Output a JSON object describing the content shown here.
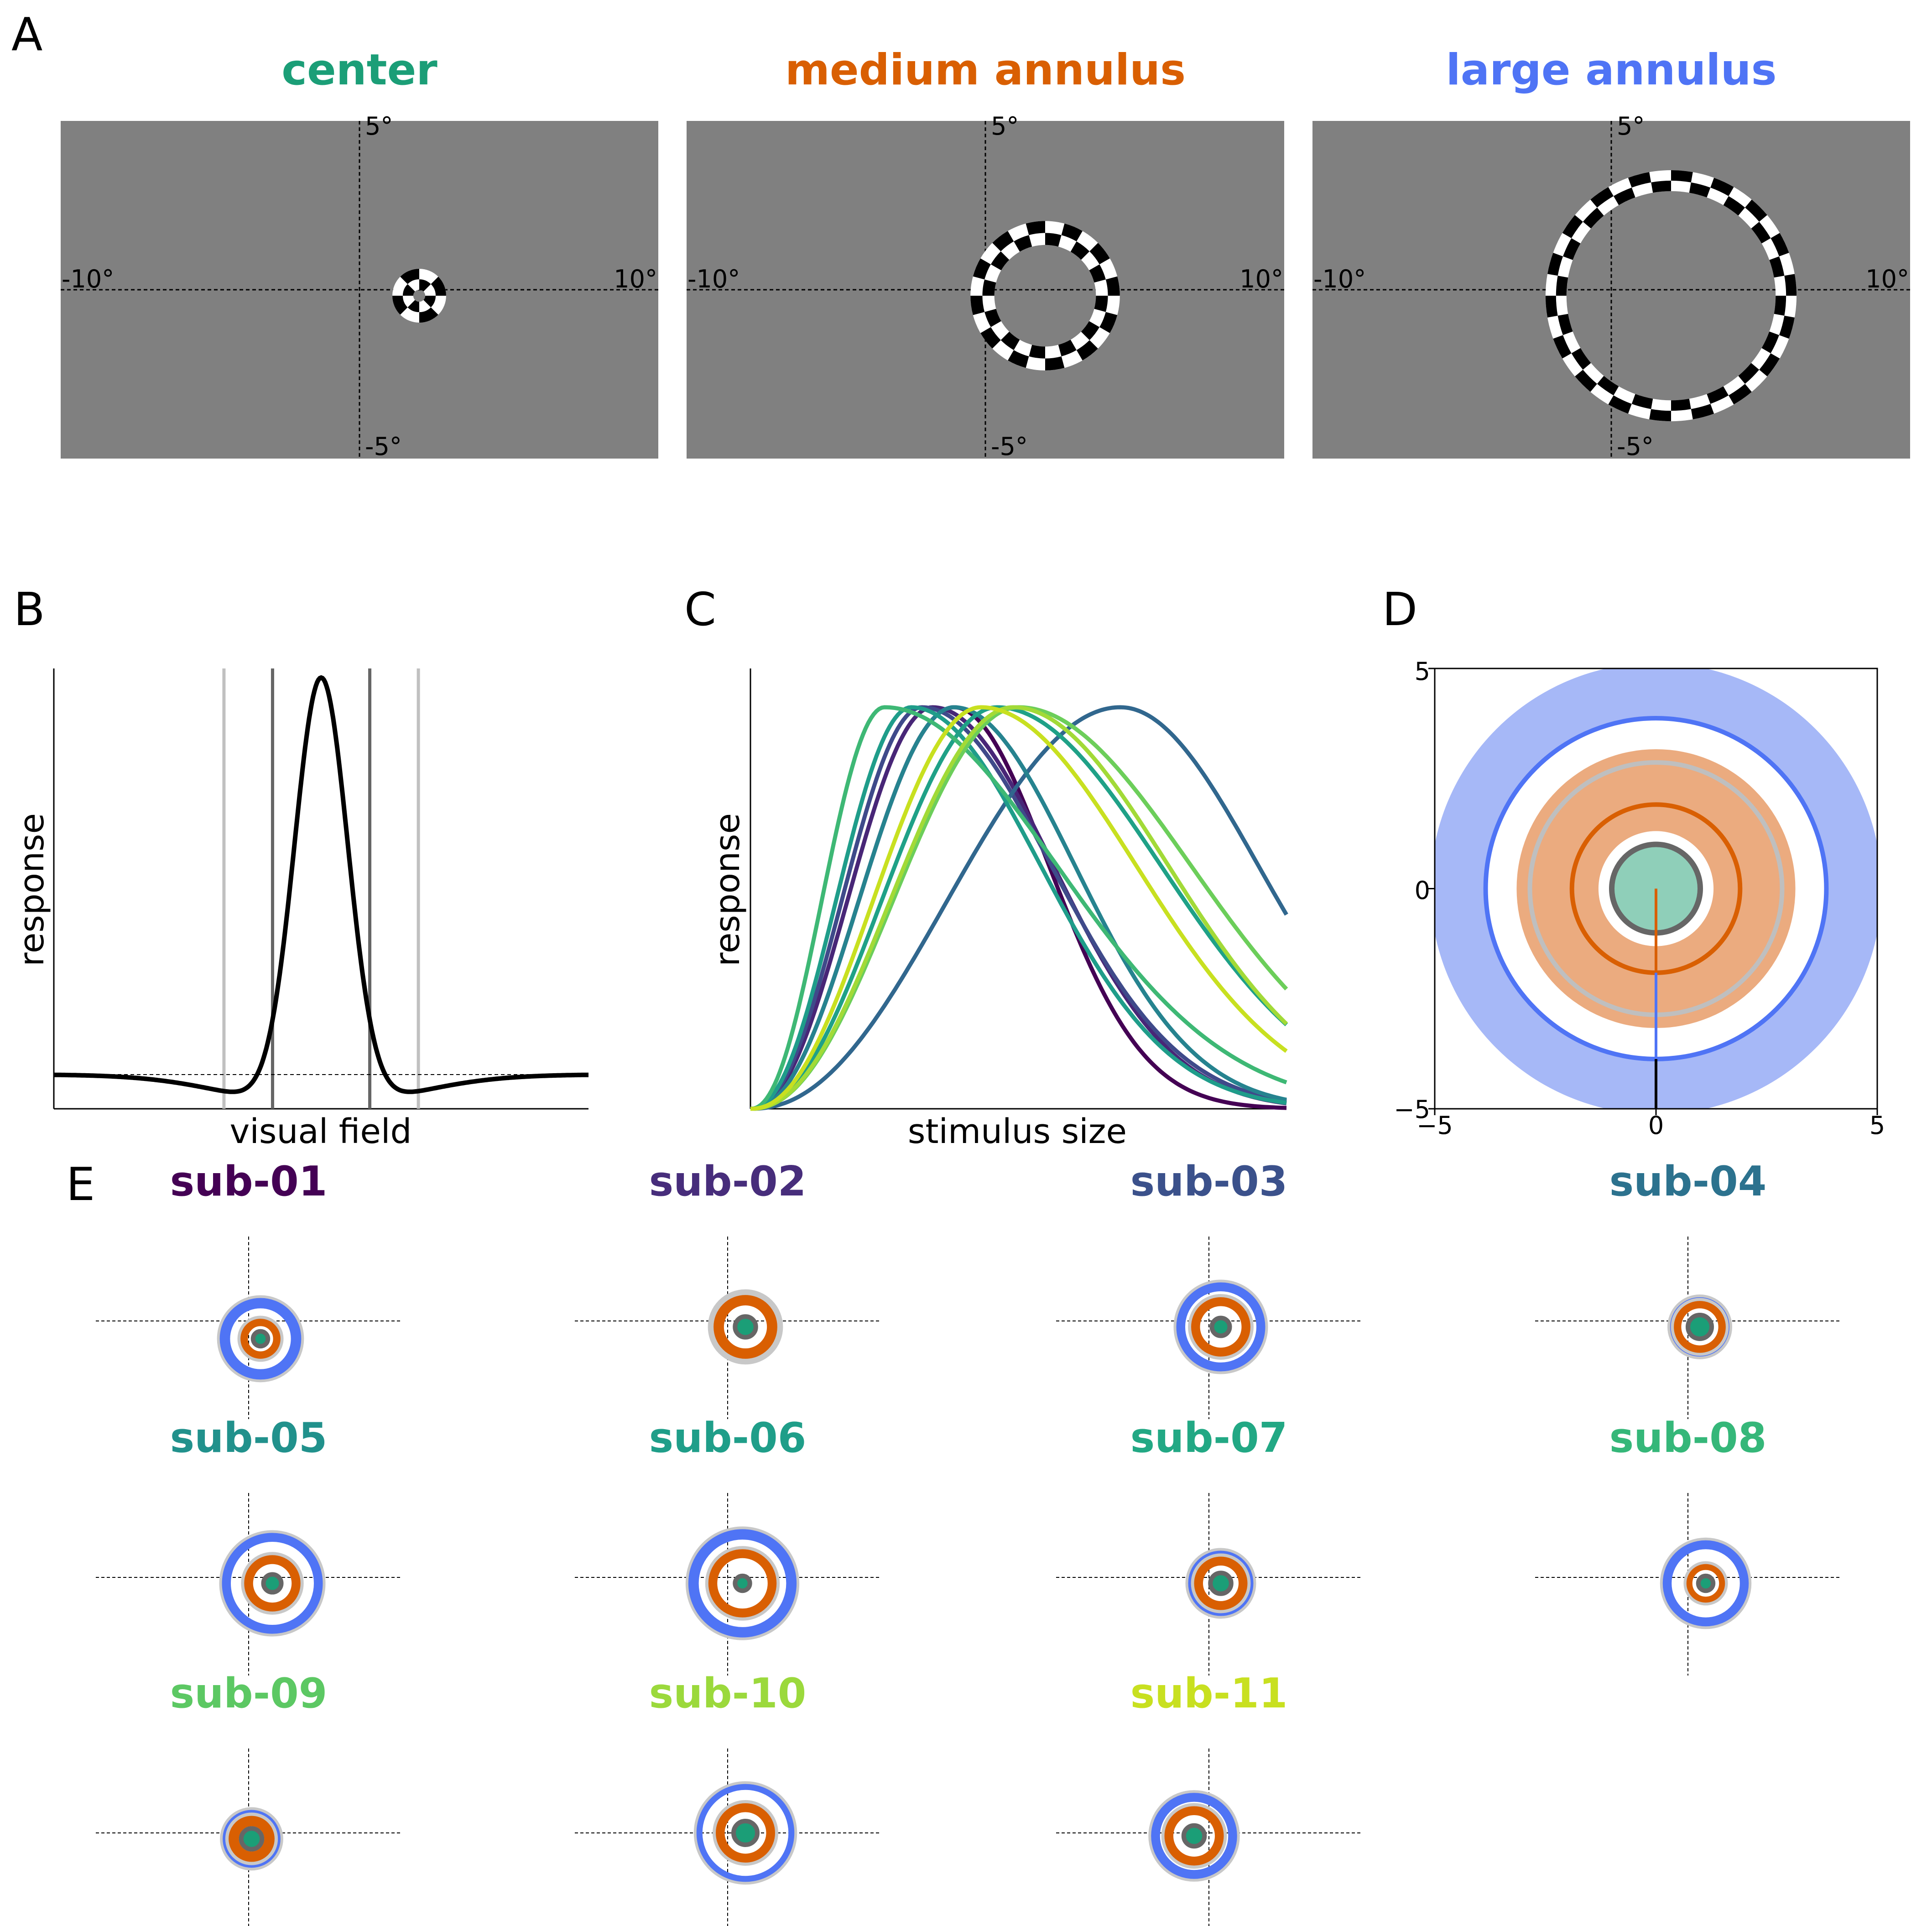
{
  "panel_labels": {
    "a": "A",
    "b": "B",
    "c": "C",
    "d": "D",
    "e": "E"
  },
  "panel_a": {
    "stimuli": [
      {
        "title": "center",
        "color": "#1b9e77",
        "annulus_deg": [
          0.2,
          0.9
        ],
        "checks": 8
      },
      {
        "title": "medium annulus",
        "color": "#d95f02",
        "annulus_deg": [
          1.7,
          2.5
        ],
        "checks": 24
      },
      {
        "title": "large annulus",
        "color": "#4f74f5",
        "annulus_deg": [
          3.5,
          4.2
        ],
        "checks": 36
      }
    ],
    "field_deg": {
      "x": [
        -10,
        10
      ],
      "y": [
        -5.6,
        5.6
      ]
    },
    "axis_labels": {
      "top": "5°",
      "bottom": "-5°",
      "left": "-10°",
      "right": "10°"
    },
    "background_color": "#808080"
  },
  "panel_b": {
    "ylabel": "response",
    "xlabel": "visual field",
    "gray_lines_x": [
      -2.0,
      -1.0,
      1.0,
      2.0
    ]
  },
  "panel_c": {
    "ylabel": "response",
    "xlabel": "stimulus size",
    "series_colors": [
      "#440154",
      "#482677",
      "#3f4a8a",
      "#31678e",
      "#26838f",
      "#1f9d8a",
      "#1fa187",
      "#3eb875",
      "#6cce5a",
      "#a2da37",
      "#c8e020"
    ],
    "curves": [
      {
        "peak": 0.38,
        "width": 0.55
      },
      {
        "peak": 0.34,
        "width": 0.7
      },
      {
        "peak": 0.32,
        "width": 0.75
      },
      {
        "peak": 0.69,
        "width": 0.8
      },
      {
        "peak": 0.38,
        "width": 0.7
      },
      {
        "peak": 0.3,
        "width": 0.75
      },
      {
        "peak": 0.46,
        "width": 0.95
      },
      {
        "peak": 0.25,
        "width": 1.0
      },
      {
        "peak": 0.5,
        "width": 1.0
      },
      {
        "peak": 0.49,
        "width": 0.9
      },
      {
        "peak": 0.43,
        "width": 0.9
      }
    ]
  },
  "panel_d": {
    "xticks": [
      "−5",
      "0",
      "5"
    ],
    "yticks": [
      "5",
      "0",
      "−5"
    ],
    "lim": [
      -5,
      5
    ]
  },
  "panel_e": {
    "subjects": [
      {
        "label": "sub-01",
        "color": "#440154",
        "dx": 0.4,
        "dy": -0.6,
        "center": 0.25,
        "ring1": 0.55,
        "ring2": 1.2,
        "r1w": 0.25,
        "r2w": 0.35
      },
      {
        "label": "sub-02",
        "color": "#472d7b",
        "dx": 0.6,
        "dy": -0.2,
        "center": 0.35,
        "ring1": 0.9,
        "ring2": 1.1,
        "r1w": 0.35,
        "r2w": 0.15
      },
      {
        "label": "sub-03",
        "color": "#3b518b",
        "dx": 0.4,
        "dy": -0.2,
        "center": 0.3,
        "ring1": 0.85,
        "ring2": 1.35,
        "r1w": 0.3,
        "r2w": 0.3
      },
      {
        "label": "sub-04",
        "color": "#2c728e",
        "dx": 0.4,
        "dy": -0.2,
        "center": 0.4,
        "ring1": 0.75,
        "ring2": 0.9,
        "r1w": 0.25,
        "r2w": 0.2
      },
      {
        "label": "sub-05",
        "color": "#21918c",
        "dx": 0.8,
        "dy": -0.2,
        "center": 0.3,
        "ring1": 0.8,
        "ring2": 1.55,
        "r1w": 0.3,
        "r2w": 0.3
      },
      {
        "label": "sub-06",
        "color": "#1f9e89",
        "dx": 0.5,
        "dy": -0.2,
        "center": 0.25,
        "ring1": 1.0,
        "ring2": 1.65,
        "r1w": 0.3,
        "r2w": 0.35
      },
      {
        "label": "sub-07",
        "color": "#22a884",
        "dx": 0.4,
        "dy": -0.2,
        "center": 0.35,
        "ring1": 0.75,
        "ring2": 1.0,
        "r1w": 0.3,
        "r2w": 0.2
      },
      {
        "label": "sub-08",
        "color": "#35b779",
        "dx": 0.6,
        "dy": -0.2,
        "center": 0.25,
        "ring1": 0.55,
        "ring2": 1.3,
        "r1w": 0.2,
        "r2w": 0.3
      },
      {
        "label": "sub-09",
        "color": "#5cc863",
        "dx": 0.1,
        "dy": -0.2,
        "center": 0.35,
        "ring1": 0.6,
        "ring2": 0.85,
        "r1w": 0.35,
        "r2w": 0.25
      },
      {
        "label": "sub-10",
        "color": "#9bd93c",
        "dx": 0.6,
        "dy": 0.0,
        "center": 0.4,
        "ring1": 0.85,
        "ring2": 1.55,
        "r1w": 0.3,
        "r2w": 0.2
      },
      {
        "label": "sub-11",
        "color": "#c8e020",
        "dx": -0.5,
        "dy": -0.1,
        "center": 0.35,
        "ring1": 0.85,
        "ring2": 1.3,
        "r1w": 0.3,
        "r2w": 0.3
      }
    ]
  }
}
